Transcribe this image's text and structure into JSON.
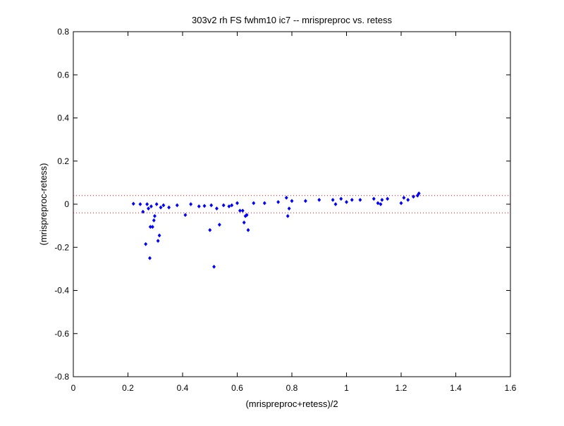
{
  "chart_data": {
    "type": "scatter",
    "title": "303v2 rh FS fwhm10 ic7 -- mrispreproc vs. retess",
    "xlabel": "(mrispreproc+retess)/2",
    "ylabel": "(mrispreproc-retess)",
    "xlim": [
      0,
      1.6
    ],
    "ylim": [
      -0.8,
      0.8
    ],
    "xticks": [
      0,
      0.2,
      0.4,
      0.6,
      0.8,
      1,
      1.2,
      1.4,
      1.6
    ],
    "xtick_labels": [
      "0",
      "0.2",
      "0.4",
      "0.6",
      "0.8",
      "1",
      "1.2",
      "1.4",
      "1.6"
    ],
    "yticks": [
      -0.8,
      -0.6,
      -0.4,
      -0.2,
      0,
      0.2,
      0.4,
      0.6,
      0.8
    ],
    "ytick_labels": [
      "-0.8",
      "-0.6",
      "-0.4",
      "-0.2",
      "0",
      "0.2",
      "0.4",
      "0.6",
      "0.8"
    ],
    "grid": false,
    "colors": {
      "points": "#0000ff",
      "limits": "#ff0000",
      "axes": "#000000"
    },
    "reference_lines": [
      {
        "y": 0.04,
        "style": "dotted",
        "color": "#ff0000"
      },
      {
        "y": -0.04,
        "style": "dotted",
        "color": "#ff0000"
      }
    ],
    "series": [
      {
        "marker": "diamond",
        "color": "#0000ff",
        "points": [
          [
            0.22,
            0.002
          ],
          [
            0.245,
            0.0
          ],
          [
            0.255,
            -0.035
          ],
          [
            0.265,
            -0.185
          ],
          [
            0.27,
            0.0
          ],
          [
            0.275,
            -0.02
          ],
          [
            0.28,
            -0.25
          ],
          [
            0.282,
            -0.105
          ],
          [
            0.285,
            -0.01
          ],
          [
            0.29,
            -0.105
          ],
          [
            0.295,
            -0.075
          ],
          [
            0.298,
            -0.055
          ],
          [
            0.305,
            -0.0
          ],
          [
            0.31,
            -0.17
          ],
          [
            0.315,
            -0.145
          ],
          [
            0.32,
            -0.015
          ],
          [
            0.33,
            -0.005
          ],
          [
            0.35,
            -0.015
          ],
          [
            0.38,
            -0.005
          ],
          [
            0.41,
            -0.05
          ],
          [
            0.43,
            0.0
          ],
          [
            0.46,
            -0.01
          ],
          [
            0.48,
            -0.008
          ],
          [
            0.5,
            -0.12
          ],
          [
            0.505,
            -0.005
          ],
          [
            0.515,
            -0.29
          ],
          [
            0.525,
            -0.02
          ],
          [
            0.535,
            -0.095
          ],
          [
            0.55,
            -0.005
          ],
          [
            0.57,
            -0.01
          ],
          [
            0.58,
            -0.005
          ],
          [
            0.6,
            0.005
          ],
          [
            0.61,
            -0.03
          ],
          [
            0.62,
            -0.03
          ],
          [
            0.625,
            -0.085
          ],
          [
            0.63,
            -0.055
          ],
          [
            0.635,
            -0.05
          ],
          [
            0.64,
            -0.12
          ],
          [
            0.66,
            0.005
          ],
          [
            0.7,
            0.005
          ],
          [
            0.75,
            0.01
          ],
          [
            0.78,
            0.03
          ],
          [
            0.785,
            -0.055
          ],
          [
            0.79,
            -0.02
          ],
          [
            0.8,
            0.015
          ],
          [
            0.85,
            0.015
          ],
          [
            0.9,
            0.02
          ],
          [
            0.95,
            0.02
          ],
          [
            0.96,
            0.0
          ],
          [
            0.98,
            0.025
          ],
          [
            1.0,
            0.01
          ],
          [
            1.02,
            0.02
          ],
          [
            1.05,
            0.02
          ],
          [
            1.1,
            0.025
          ],
          [
            1.115,
            0.005
          ],
          [
            1.125,
            0.0
          ],
          [
            1.13,
            0.02
          ],
          [
            1.15,
            0.025
          ],
          [
            1.2,
            0.005
          ],
          [
            1.21,
            0.03
          ],
          [
            1.225,
            0.02
          ],
          [
            1.245,
            0.035
          ],
          [
            1.26,
            0.04
          ],
          [
            1.265,
            0.05
          ]
        ]
      }
    ]
  }
}
